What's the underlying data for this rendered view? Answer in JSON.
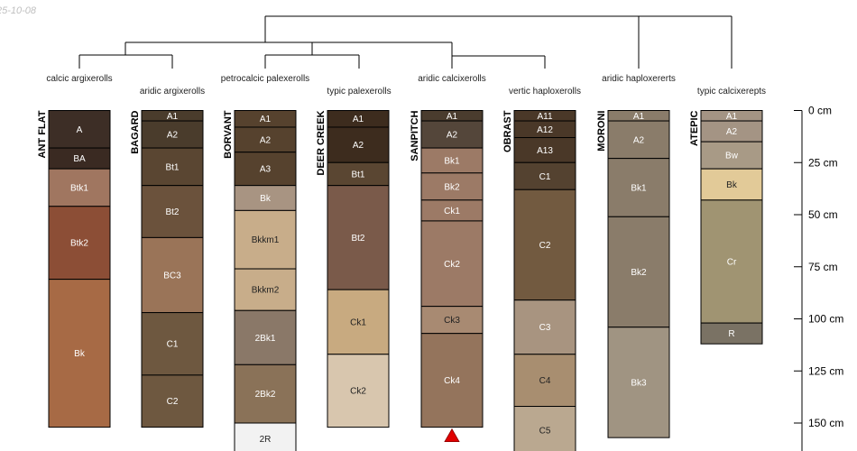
{
  "timestamp": "25-10-08",
  "taxa": [
    "calcic argixerolls",
    "aridic argixerolls",
    "petrocalcic palexerolls",
    "typic palexerolls",
    "aridic calcixerolls",
    "vertic haploxerolls",
    "aridic haploxererts",
    "typic calcixerepts"
  ],
  "depth_axis": {
    "unit": "cm",
    "ticks": [
      0,
      25,
      50,
      75,
      100,
      125,
      150
    ],
    "labels": [
      "0 cm",
      "25 cm",
      "50 cm",
      "75 cm",
      "100 cm",
      "125 cm",
      "150 cm"
    ]
  },
  "profiles": [
    {
      "name": "ANT FLAT",
      "horizons": [
        {
          "name": "A",
          "top": 0,
          "bottom": 18,
          "color": "#3d2e26",
          "text": "#ffffff"
        },
        {
          "name": "BA",
          "top": 18,
          "bottom": 28,
          "color": "#3a2a22",
          "text": "#ffffff"
        },
        {
          "name": "Btk1",
          "top": 28,
          "bottom": 46,
          "color": "#a07660",
          "text": "#ffffff"
        },
        {
          "name": "Btk2",
          "top": 46,
          "bottom": 81,
          "color": "#8c4e36",
          "text": "#ffffff"
        },
        {
          "name": "Bk",
          "top": 81,
          "bottom": 152,
          "color": "#a76a45",
          "text": "#ffffff"
        }
      ]
    },
    {
      "name": "BAGARD",
      "horizons": [
        {
          "name": "A1",
          "top": 0,
          "bottom": 5,
          "color": "#4a3c2c",
          "text": "#ffffff"
        },
        {
          "name": "A2",
          "top": 5,
          "bottom": 18,
          "color": "#4a3c2c",
          "text": "#ffffff"
        },
        {
          "name": "Bt1",
          "top": 18,
          "bottom": 36,
          "color": "#5a4632",
          "text": "#ffffff"
        },
        {
          "name": "Bt2",
          "top": 36,
          "bottom": 61,
          "color": "#6b523c",
          "text": "#ffffff"
        },
        {
          "name": "BC3",
          "top": 61,
          "bottom": 97,
          "color": "#9a7458",
          "text": "#ffffff"
        },
        {
          "name": "C1",
          "top": 97,
          "bottom": 127,
          "color": "#6e5840",
          "text": "#ffffff"
        },
        {
          "name": "C2",
          "top": 127,
          "bottom": 152,
          "color": "#6e5840",
          "text": "#ffffff"
        }
      ]
    },
    {
      "name": "BORVANT",
      "horizons": [
        {
          "name": "A1",
          "top": 0,
          "bottom": 8,
          "color": "#56422e",
          "text": "#ffffff"
        },
        {
          "name": "A2",
          "top": 8,
          "bottom": 20,
          "color": "#56422e",
          "text": "#ffffff"
        },
        {
          "name": "A3",
          "top": 20,
          "bottom": 36,
          "color": "#56422e",
          "text": "#ffffff"
        },
        {
          "name": "Bk",
          "top": 36,
          "bottom": 48,
          "color": "#a89482",
          "text": "#ffffff"
        },
        {
          "name": "Bkkm1",
          "top": 48,
          "bottom": 76,
          "color": "#c8ad8a",
          "text": "#222222"
        },
        {
          "name": "Bkkm2",
          "top": 76,
          "bottom": 96,
          "color": "#c8ad8a",
          "text": "#222222"
        },
        {
          "name": "2Bk1",
          "top": 96,
          "bottom": 122,
          "color": "#8a7868",
          "text": "#ffffff"
        },
        {
          "name": "2Bk2",
          "top": 122,
          "bottom": 150,
          "color": "#8a7258",
          "text": "#ffffff"
        },
        {
          "name": "2R",
          "top": 150,
          "bottom": 165,
          "color": "#f2f2f2",
          "text": "#222222"
        }
      ]
    },
    {
      "name": "DEER CREEK",
      "horizons": [
        {
          "name": "A1",
          "top": 0,
          "bottom": 8,
          "color": "#3d2c1e",
          "text": "#ffffff"
        },
        {
          "name": "A2",
          "top": 8,
          "bottom": 25,
          "color": "#3d2c1e",
          "text": "#ffffff"
        },
        {
          "name": "Bt1",
          "top": 25,
          "bottom": 36,
          "color": "#5a4632",
          "text": "#ffffff"
        },
        {
          "name": "Bt2",
          "top": 36,
          "bottom": 86,
          "color": "#7a5a4a",
          "text": "#ffffff"
        },
        {
          "name": "Ck1",
          "top": 86,
          "bottom": 117,
          "color": "#c8aa80",
          "text": "#222222"
        },
        {
          "name": "Ck2",
          "top": 117,
          "bottom": 152,
          "color": "#d8c6ae",
          "text": "#222222"
        }
      ]
    },
    {
      "name": "SANPITCH",
      "bottom_marker": true,
      "horizons": [
        {
          "name": "A1",
          "top": 0,
          "bottom": 5,
          "color": "#4a3c2e",
          "text": "#ffffff"
        },
        {
          "name": "A2",
          "top": 5,
          "bottom": 18,
          "color": "#54463a",
          "text": "#ffffff"
        },
        {
          "name": "Bk1",
          "top": 18,
          "bottom": 30,
          "color": "#9c7a66",
          "text": "#ffffff"
        },
        {
          "name": "Bk2",
          "top": 30,
          "bottom": 43,
          "color": "#9c7a66",
          "text": "#ffffff"
        },
        {
          "name": "Ck1",
          "top": 43,
          "bottom": 53,
          "color": "#9c7a66",
          "text": "#ffffff"
        },
        {
          "name": "Ck2",
          "top": 53,
          "bottom": 94,
          "color": "#9c7a66",
          "text": "#ffffff"
        },
        {
          "name": "Ck3",
          "top": 94,
          "bottom": 107,
          "color": "#a88a72",
          "text": "#222222"
        },
        {
          "name": "Ck4",
          "top": 107,
          "bottom": 152,
          "color": "#94745c",
          "text": "#ffffff"
        }
      ]
    },
    {
      "name": "OBRAST",
      "horizons": [
        {
          "name": "A11",
          "top": 0,
          "bottom": 5,
          "color": "#4a3828",
          "text": "#ffffff"
        },
        {
          "name": "A12",
          "top": 5,
          "bottom": 13,
          "color": "#4a3828",
          "text": "#ffffff"
        },
        {
          "name": "A13",
          "top": 13,
          "bottom": 25,
          "color": "#4a3828",
          "text": "#ffffff"
        },
        {
          "name": "C1",
          "top": 25,
          "bottom": 38,
          "color": "#544230",
          "text": "#ffffff"
        },
        {
          "name": "C2",
          "top": 38,
          "bottom": 91,
          "color": "#725a40",
          "text": "#ffffff"
        },
        {
          "name": "C3",
          "top": 91,
          "bottom": 117,
          "color": "#a89480",
          "text": "#ffffff"
        },
        {
          "name": "C4",
          "top": 117,
          "bottom": 142,
          "color": "#a88e70",
          "text": "#222222"
        },
        {
          "name": "C5",
          "top": 142,
          "bottom": 165,
          "color": "#baa890",
          "text": "#222222"
        }
      ]
    },
    {
      "name": "MORONI",
      "horizons": [
        {
          "name": "A1",
          "top": 0,
          "bottom": 5,
          "color": "#8a7c6a",
          "text": "#ffffff"
        },
        {
          "name": "A2",
          "top": 5,
          "bottom": 23,
          "color": "#8a7c6a",
          "text": "#ffffff"
        },
        {
          "name": "Bk1",
          "top": 23,
          "bottom": 51,
          "color": "#8a7c6a",
          "text": "#ffffff"
        },
        {
          "name": "Bk2",
          "top": 51,
          "bottom": 104,
          "color": "#8a7c6a",
          "text": "#ffffff"
        },
        {
          "name": "Bk3",
          "top": 104,
          "bottom": 157,
          "color": "#a09482",
          "text": "#ffffff"
        }
      ]
    },
    {
      "name": "ATEPIC",
      "horizons": [
        {
          "name": "A1",
          "top": 0,
          "bottom": 5,
          "color": "#a49484",
          "text": "#ffffff"
        },
        {
          "name": "A2",
          "top": 5,
          "bottom": 15,
          "color": "#a49484",
          "text": "#ffffff"
        },
        {
          "name": "Bw",
          "top": 15,
          "bottom": 28,
          "color": "#a89a86",
          "text": "#ffffff"
        },
        {
          "name": "Bk",
          "top": 28,
          "bottom": 43,
          "color": "#e2ca98",
          "text": "#222222"
        },
        {
          "name": "Cr",
          "top": 43,
          "bottom": 102,
          "color": "#a09472",
          "text": "#ffffff"
        },
        {
          "name": "R",
          "top": 102,
          "bottom": 112,
          "color": "#7a7264",
          "text": "#ffffff"
        }
      ]
    }
  ]
}
